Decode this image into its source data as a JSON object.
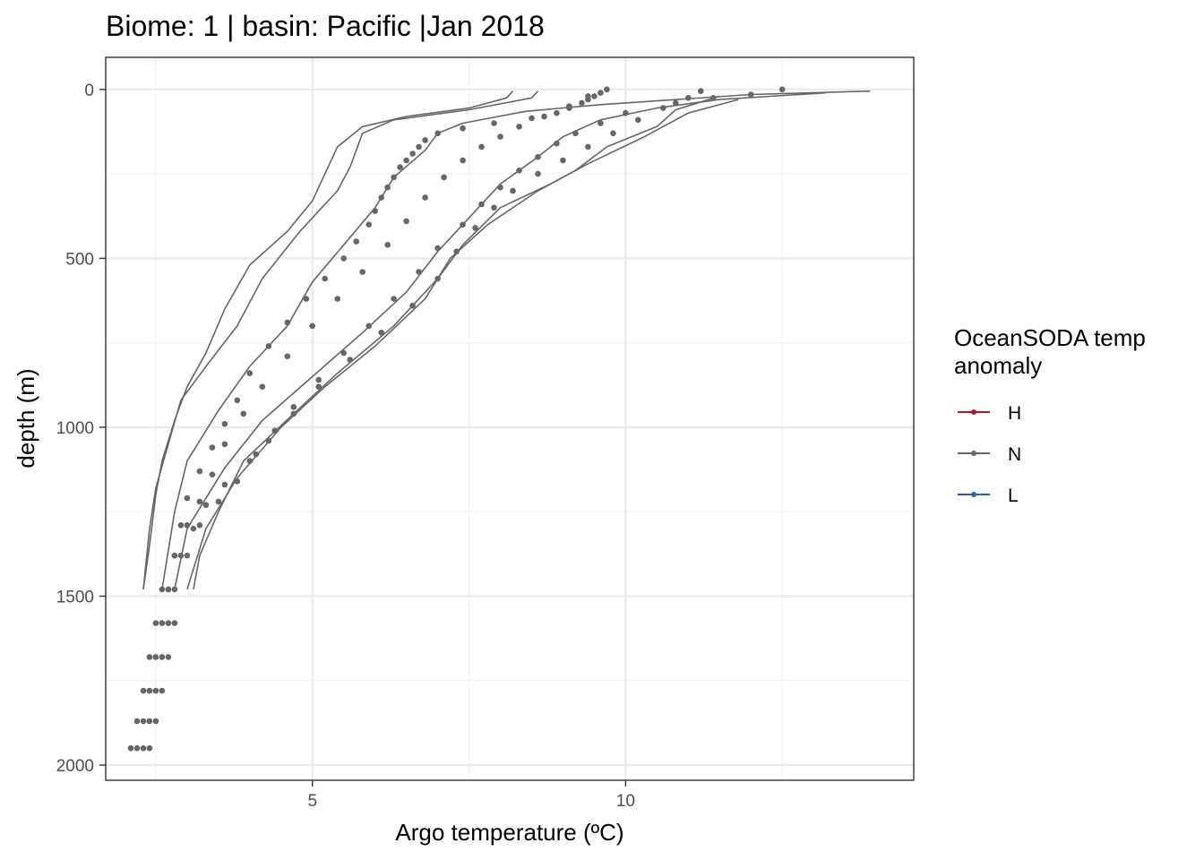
{
  "chart_data": {
    "type": "line",
    "title": "Biome: 1 | basin: Pacific  |Jan 2018",
    "xlabel": "Argo temperature (ºC)",
    "ylabel": "depth (m)",
    "xlim": [
      1.7,
      14.6
    ],
    "ylim": [
      2045,
      -95
    ],
    "y_reversed": true,
    "x_ticks": [
      5,
      10
    ],
    "x_tick_labels": [
      "5",
      "10"
    ],
    "y_ticks": [
      0,
      500,
      1000,
      1500,
      2000
    ],
    "y_tick_labels": [
      "0",
      "500",
      "1000",
      "1500",
      "2000"
    ],
    "grid": true,
    "legend": {
      "title_lines": [
        "OceanSODA temp",
        "anomaly"
      ],
      "position": "right",
      "items": [
        {
          "label": "H",
          "color": "#b2182b"
        },
        {
          "label": "N",
          "color": "#666666"
        },
        {
          "label": "L",
          "color": "#2166ac"
        }
      ]
    },
    "series": [
      {
        "category": "N",
        "style": "line",
        "color": "#666666",
        "points": [
          [
            8.2,
            5
          ],
          [
            8.1,
            25
          ],
          [
            7.5,
            55
          ],
          [
            6.5,
            80
          ],
          [
            5.8,
            110
          ],
          [
            5.6,
            140
          ],
          [
            5.4,
            170
          ],
          [
            5.2,
            250
          ],
          [
            5.0,
            330
          ],
          [
            4.6,
            420
          ],
          [
            4.0,
            520
          ],
          [
            3.6,
            650
          ],
          [
            3.3,
            780
          ],
          [
            3.0,
            880
          ],
          [
            2.8,
            980
          ],
          [
            2.6,
            1100
          ],
          [
            2.5,
            1200
          ],
          [
            2.4,
            1350
          ],
          [
            2.3,
            1480
          ]
        ]
      },
      {
        "category": "N",
        "style": "line",
        "color": "#666666",
        "points": [
          [
            8.6,
            5
          ],
          [
            8.5,
            25
          ],
          [
            7.5,
            60
          ],
          [
            6.3,
            90
          ],
          [
            5.8,
            130
          ],
          [
            5.7,
            180
          ],
          [
            5.6,
            230
          ],
          [
            5.4,
            300
          ],
          [
            4.8,
            420
          ],
          [
            4.2,
            560
          ],
          [
            3.8,
            700
          ],
          [
            3.3,
            820
          ],
          [
            2.9,
            920
          ],
          [
            2.7,
            1050
          ],
          [
            2.5,
            1180
          ],
          [
            2.4,
            1300
          ],
          [
            2.3,
            1480
          ]
        ]
      },
      {
        "category": "N",
        "style": "line",
        "color": "#666666",
        "points": [
          [
            13.9,
            5
          ],
          [
            12.0,
            15
          ],
          [
            9.6,
            45
          ],
          [
            8.4,
            65
          ],
          [
            7.4,
            100
          ],
          [
            7.0,
            130
          ],
          [
            6.8,
            180
          ],
          [
            6.3,
            260
          ],
          [
            6.0,
            350
          ],
          [
            5.5,
            460
          ],
          [
            5.0,
            570
          ],
          [
            4.6,
            700
          ],
          [
            4.0,
            820
          ],
          [
            3.5,
            950
          ],
          [
            3.0,
            1100
          ],
          [
            2.8,
            1250
          ],
          [
            2.6,
            1480
          ]
        ]
      },
      {
        "category": "N",
        "style": "line",
        "color": "#666666",
        "points": [
          [
            13.2,
            10
          ],
          [
            11.5,
            30
          ],
          [
            10.5,
            55
          ],
          [
            9.6,
            90
          ],
          [
            9.0,
            140
          ],
          [
            8.6,
            200
          ],
          [
            8.0,
            280
          ],
          [
            7.5,
            380
          ],
          [
            7.0,
            480
          ],
          [
            6.5,
            600
          ],
          [
            5.8,
            720
          ],
          [
            5.0,
            850
          ],
          [
            4.2,
            980
          ],
          [
            3.6,
            1120
          ],
          [
            3.0,
            1300
          ],
          [
            2.8,
            1480
          ]
        ]
      },
      {
        "category": "N",
        "style": "line",
        "color": "#666666",
        "points": [
          [
            11.5,
            20
          ],
          [
            10.8,
            60
          ],
          [
            10.5,
            110
          ],
          [
            9.7,
            170
          ],
          [
            9.2,
            240
          ],
          [
            8.6,
            300
          ],
          [
            7.8,
            400
          ],
          [
            7.2,
            500
          ],
          [
            6.8,
            620
          ],
          [
            6.0,
            760
          ],
          [
            5.2,
            880
          ],
          [
            4.5,
            1000
          ],
          [
            3.8,
            1150
          ],
          [
            3.3,
            1300
          ],
          [
            3.0,
            1480
          ]
        ]
      },
      {
        "category": "N",
        "style": "line",
        "color": "#666666",
        "points": [
          [
            11.8,
            30
          ],
          [
            11.0,
            70
          ],
          [
            10.3,
            140
          ],
          [
            9.4,
            220
          ],
          [
            8.8,
            280
          ],
          [
            8.0,
            350
          ],
          [
            7.4,
            460
          ],
          [
            7.0,
            560
          ],
          [
            6.3,
            700
          ],
          [
            5.4,
            840
          ],
          [
            4.7,
            960
          ],
          [
            3.9,
            1100
          ],
          [
            3.5,
            1250
          ],
          [
            3.2,
            1380
          ],
          [
            3.1,
            1480
          ]
        ]
      },
      {
        "category": "N",
        "style": "dots",
        "color": "#666666",
        "points": [
          [
            9.7,
            0
          ],
          [
            9.6,
            10
          ],
          [
            9.5,
            20
          ],
          [
            9.4,
            30
          ],
          [
            9.3,
            40
          ],
          [
            9.1,
            55
          ],
          [
            8.9,
            70
          ],
          [
            8.5,
            85
          ],
          [
            7.9,
            100
          ],
          [
            7.4,
            115
          ],
          [
            7.0,
            130
          ],
          [
            6.8,
            150
          ],
          [
            6.7,
            170
          ],
          [
            6.6,
            190
          ],
          [
            6.5,
            210
          ],
          [
            6.4,
            230
          ],
          [
            6.3,
            260
          ],
          [
            6.2,
            290
          ],
          [
            6.1,
            320
          ],
          [
            6.0,
            360
          ],
          [
            5.9,
            400
          ],
          [
            5.7,
            450
          ],
          [
            5.5,
            500
          ],
          [
            5.2,
            560
          ],
          [
            4.9,
            620
          ],
          [
            4.6,
            690
          ],
          [
            4.3,
            760
          ],
          [
            4.0,
            840
          ],
          [
            3.8,
            920
          ],
          [
            3.6,
            990
          ],
          [
            3.4,
            1060
          ],
          [
            3.2,
            1130
          ],
          [
            3.0,
            1210
          ],
          [
            2.9,
            1290
          ],
          [
            2.8,
            1380
          ],
          [
            2.7,
            1480
          ],
          [
            2.6,
            1580
          ],
          [
            2.5,
            1680
          ],
          [
            2.4,
            1780
          ],
          [
            2.3,
            1870
          ],
          [
            2.2,
            1950
          ]
        ]
      },
      {
        "category": "N",
        "style": "dots",
        "color": "#666666",
        "points": [
          [
            9.4,
            20
          ],
          [
            9.1,
            50
          ],
          [
            8.7,
            80
          ],
          [
            8.3,
            110
          ],
          [
            8.0,
            140
          ],
          [
            7.7,
            170
          ],
          [
            7.4,
            210
          ],
          [
            7.1,
            260
          ],
          [
            6.8,
            320
          ],
          [
            6.5,
            390
          ],
          [
            6.2,
            460
          ],
          [
            5.8,
            540
          ],
          [
            5.4,
            620
          ],
          [
            5.0,
            700
          ],
          [
            4.6,
            790
          ],
          [
            4.2,
            880
          ],
          [
            3.9,
            960
          ],
          [
            3.6,
            1050
          ],
          [
            3.4,
            1140
          ],
          [
            3.2,
            1220
          ],
          [
            3.0,
            1290
          ],
          [
            2.8,
            1380
          ],
          [
            2.6,
            1480
          ],
          [
            2.5,
            1580
          ],
          [
            2.4,
            1680
          ],
          [
            2.3,
            1780
          ],
          [
            2.2,
            1870
          ],
          [
            2.1,
            1950
          ]
        ]
      },
      {
        "category": "N",
        "style": "dots",
        "color": "#666666",
        "points": [
          [
            12.5,
            0
          ],
          [
            12.0,
            15
          ],
          [
            11.4,
            25
          ],
          [
            10.8,
            40
          ],
          [
            10.0,
            70
          ],
          [
            9.6,
            100
          ],
          [
            9.2,
            130
          ],
          [
            8.9,
            160
          ],
          [
            8.6,
            200
          ],
          [
            8.3,
            240
          ],
          [
            8.0,
            290
          ],
          [
            7.7,
            340
          ],
          [
            7.4,
            400
          ],
          [
            7.0,
            470
          ],
          [
            6.7,
            540
          ],
          [
            6.3,
            620
          ],
          [
            5.9,
            700
          ],
          [
            5.5,
            780
          ],
          [
            5.1,
            860
          ],
          [
            4.7,
            940
          ],
          [
            4.4,
            1010
          ],
          [
            4.1,
            1080
          ],
          [
            3.8,
            1160
          ],
          [
            3.5,
            1220
          ],
          [
            3.2,
            1290
          ],
          [
            3.0,
            1380
          ],
          [
            2.8,
            1480
          ],
          [
            2.7,
            1580
          ],
          [
            2.6,
            1680
          ],
          [
            2.5,
            1780
          ],
          [
            2.4,
            1870
          ],
          [
            2.3,
            1950
          ]
        ]
      },
      {
        "category": "N",
        "style": "dots",
        "color": "#666666",
        "points": [
          [
            11.2,
            5
          ],
          [
            11.0,
            25
          ],
          [
            10.6,
            55
          ],
          [
            10.2,
            90
          ],
          [
            9.8,
            130
          ],
          [
            9.4,
            170
          ],
          [
            9.0,
            210
          ],
          [
            8.6,
            250
          ],
          [
            8.2,
            300
          ],
          [
            7.9,
            350
          ],
          [
            7.6,
            410
          ],
          [
            7.3,
            480
          ],
          [
            7.0,
            560
          ],
          [
            6.6,
            640
          ],
          [
            6.1,
            720
          ],
          [
            5.6,
            800
          ],
          [
            5.1,
            880
          ],
          [
            4.7,
            960
          ],
          [
            4.3,
            1040
          ],
          [
            4.0,
            1100
          ],
          [
            3.6,
            1170
          ],
          [
            3.3,
            1230
          ],
          [
            3.1,
            1300
          ],
          [
            2.9,
            1380
          ],
          [
            2.7,
            1480
          ],
          [
            2.8,
            1580
          ],
          [
            2.7,
            1680
          ],
          [
            2.6,
            1780
          ],
          [
            2.5,
            1870
          ],
          [
            2.4,
            1950
          ]
        ]
      }
    ]
  }
}
